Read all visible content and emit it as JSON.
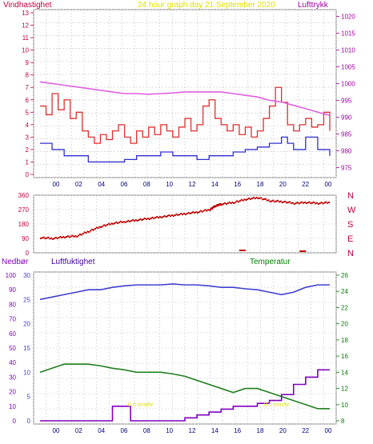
{
  "header": {
    "left_label": "Vindhastighet",
    "title": "24 hour graph day  21 September 2020",
    "right_label": "Lufttrykk"
  },
  "bottom_labels": {
    "left": "Nedbør",
    "mid": "Luftfuktighet",
    "right": "Temperatur"
  },
  "annotations": [
    "0.0 mm/hr",
    "0.0 mm/hr"
  ],
  "colors": {
    "wind": "#e03030",
    "gust_base": "#3030d0",
    "pressure": "#e060e0",
    "direction": "#c00000",
    "humidity": "#4040d0",
    "temperature": "#208020",
    "rain": "#8000c0",
    "left_axis": "#c00040",
    "right_axis_top": "#a000a0",
    "right_axis_bottom": "#008000",
    "title": "#e0e000"
  },
  "chart_data": [
    {
      "type": "line",
      "name": "wind-pressure",
      "x_ticks": [
        "00",
        "02",
        "04",
        "06",
        "08",
        "10",
        "12",
        "14",
        "16",
        "18",
        "20",
        "22",
        "00"
      ],
      "y_left_ticks": [
        "0",
        "1",
        "2",
        "3",
        "4",
        "5",
        "6",
        "7",
        "8",
        "9",
        "10",
        "11",
        "12",
        "13"
      ],
      "y_right_ticks": [
        "975",
        "980",
        "985",
        "990",
        "995",
        "1000",
        "1005",
        "1010",
        "1015",
        "1020"
      ],
      "ylim_left": [
        0,
        13
      ],
      "ylim_right": [
        972,
        1022
      ],
      "series": [
        {
          "key": "wind",
          "values": [
            [
              0,
              5.5
            ],
            [
              0.5,
              4.8
            ],
            [
              1,
              6.5
            ],
            [
              1.5,
              5.2
            ],
            [
              2,
              6
            ],
            [
              2.5,
              4.5
            ],
            [
              3,
              5
            ],
            [
              3.5,
              3.5
            ],
            [
              4,
              3
            ],
            [
              4.5,
              2.5
            ],
            [
              5,
              3.2
            ],
            [
              5.5,
              2.8
            ],
            [
              6,
              3.5
            ],
            [
              6.5,
              4
            ],
            [
              7,
              3
            ],
            [
              7.5,
              2.5
            ],
            [
              8,
              3.5
            ],
            [
              8.5,
              3
            ],
            [
              9,
              3.8
            ],
            [
              9.5,
              3.2
            ],
            [
              10,
              4
            ],
            [
              10.5,
              3.5
            ],
            [
              11,
              3
            ],
            [
              11.5,
              3.8
            ],
            [
              12,
              4.5
            ],
            [
              12.5,
              3.5
            ],
            [
              13,
              4
            ],
            [
              13.5,
              5.5
            ],
            [
              14,
              6
            ],
            [
              14.5,
              4.5
            ],
            [
              15,
              4
            ],
            [
              15.5,
              3.5
            ],
            [
              16,
              4
            ],
            [
              16.5,
              3.2
            ],
            [
              17,
              3.8
            ],
            [
              17.5,
              3
            ],
            [
              18,
              3.5
            ],
            [
              18.5,
              4.5
            ],
            [
              19,
              5.5
            ],
            [
              19.5,
              7
            ],
            [
              20,
              5.8
            ],
            [
              20.5,
              4
            ],
            [
              21,
              3.5
            ],
            [
              21.5,
              4
            ],
            [
              22,
              4.5
            ],
            [
              22.5,
              3.8
            ],
            [
              23,
              4
            ],
            [
              23.5,
              5
            ],
            [
              24,
              3.5
            ]
          ]
        },
        {
          "key": "gust_base",
          "values": [
            [
              0,
              2.5
            ],
            [
              1,
              2
            ],
            [
              2,
              1.5
            ],
            [
              3,
              1.5
            ],
            [
              4,
              1
            ],
            [
              5,
              1
            ],
            [
              6,
              1
            ],
            [
              7,
              1.2
            ],
            [
              8,
              1.5
            ],
            [
              9,
              1.5
            ],
            [
              10,
              1.8
            ],
            [
              11,
              1.5
            ],
            [
              12,
              1.5
            ],
            [
              13,
              1.2
            ],
            [
              14,
              1.5
            ],
            [
              15,
              1.5
            ],
            [
              16,
              1.8
            ],
            [
              17,
              2
            ],
            [
              18,
              2.2
            ],
            [
              19,
              2.5
            ],
            [
              20,
              3
            ],
            [
              20.5,
              2.5
            ],
            [
              21,
              2
            ],
            [
              22,
              3
            ],
            [
              23,
              2
            ],
            [
              24,
              1.5
            ]
          ]
        },
        {
          "key": "pressure",
          "axis": "right",
          "values": [
            [
              0,
              1000.5
            ],
            [
              1,
              1000
            ],
            [
              2,
              999.5
            ],
            [
              3,
              999
            ],
            [
              4,
              998.5
            ],
            [
              5,
              998
            ],
            [
              6,
              997.5
            ],
            [
              7,
              997
            ],
            [
              8,
              997
            ],
            [
              9,
              996.8
            ],
            [
              10,
              997
            ],
            [
              11,
              997.2
            ],
            [
              12,
              997.5
            ],
            [
              13,
              997.5
            ],
            [
              14,
              997.5
            ],
            [
              15,
              997.5
            ],
            [
              16,
              997
            ],
            [
              17,
              996.5
            ],
            [
              18,
              996
            ],
            [
              19,
              995
            ],
            [
              20,
              994.5
            ],
            [
              21,
              993.5
            ],
            [
              22,
              992.5
            ],
            [
              23,
              991.5
            ],
            [
              24,
              990.5
            ]
          ]
        }
      ]
    },
    {
      "type": "scatter",
      "name": "wind-direction",
      "y_left_ticks": [
        "0",
        "90",
        "180",
        "270",
        "360"
      ],
      "y_right_ticks": [
        "N",
        "E",
        "S",
        "W",
        "N"
      ],
      "ylim": [
        0,
        360
      ],
      "values": [
        [
          0,
          100
        ],
        [
          1,
          95
        ],
        [
          2,
          105
        ],
        [
          3,
          110
        ],
        [
          4,
          140
        ],
        [
          5,
          170
        ],
        [
          6,
          190
        ],
        [
          7,
          200
        ],
        [
          8,
          210
        ],
        [
          9,
          220
        ],
        [
          10,
          230
        ],
        [
          11,
          240
        ],
        [
          12,
          250
        ],
        [
          13,
          260
        ],
        [
          14,
          275
        ],
        [
          14.5,
          300
        ],
        [
          15,
          310
        ],
        [
          16,
          320
        ],
        [
          17,
          340
        ],
        [
          18,
          350
        ],
        [
          19,
          330
        ],
        [
          20,
          325
        ],
        [
          21,
          315
        ],
        [
          22,
          320
        ],
        [
          23,
          315
        ],
        [
          24,
          320
        ],
        [
          16.5,
          20
        ],
        [
          21.5,
          15
        ]
      ]
    },
    {
      "type": "line",
      "name": "rain-humidity-temperature",
      "x_ticks": [
        "00",
        "02",
        "04",
        "06",
        "08",
        "10",
        "12",
        "14",
        "16",
        "18",
        "20",
        "22",
        "00"
      ],
      "y_rain_ticks": [
        "0",
        "10",
        "20",
        "30",
        "40",
        "50",
        "60",
        "70",
        "80",
        "90",
        "100"
      ],
      "y_humidity_ticks": [
        "0",
        "5",
        "10",
        "15",
        "20",
        "25",
        "30"
      ],
      "y_temp_ticks": [
        "8",
        "10",
        "12",
        "14",
        "16",
        "18",
        "20",
        "22",
        "24",
        "26"
      ],
      "series": [
        {
          "key": "humidity",
          "axis": "humidity",
          "ylim": [
            0,
            30
          ],
          "values": [
            [
              0,
              25
            ],
            [
              1,
              25.5
            ],
            [
              2,
              26
            ],
            [
              3,
              26.5
            ],
            [
              4,
              27
            ],
            [
              5,
              27
            ],
            [
              6,
              27.5
            ],
            [
              7,
              27.8
            ],
            [
              8,
              28
            ],
            [
              9,
              28
            ],
            [
              10,
              28
            ],
            [
              11,
              28.2
            ],
            [
              12,
              28
            ],
            [
              13,
              28
            ],
            [
              14,
              27.8
            ],
            [
              15,
              27.5
            ],
            [
              16,
              27.5
            ],
            [
              17,
              27.2
            ],
            [
              18,
              27
            ],
            [
              19,
              26.5
            ],
            [
              20,
              26
            ],
            [
              21,
              26.5
            ],
            [
              22,
              27.5
            ],
            [
              23,
              28
            ],
            [
              24,
              28
            ]
          ]
        },
        {
          "key": "temperature",
          "axis": "temp",
          "ylim": [
            8,
            26
          ],
          "values": [
            [
              0,
              14
            ],
            [
              1,
              14.5
            ],
            [
              2,
              15
            ],
            [
              3,
              15
            ],
            [
              4,
              15
            ],
            [
              5,
              14.8
            ],
            [
              6,
              14.5
            ],
            [
              7,
              14.3
            ],
            [
              8,
              14
            ],
            [
              9,
              14
            ],
            [
              10,
              14
            ],
            [
              11,
              13.8
            ],
            [
              12,
              13.5
            ],
            [
              13,
              13
            ],
            [
              14,
              12.5
            ],
            [
              15,
              12
            ],
            [
              16,
              11.5
            ],
            [
              17,
              12
            ],
            [
              18,
              12
            ],
            [
              19,
              11.5
            ],
            [
              20,
              11
            ],
            [
              21,
              10.5
            ],
            [
              22,
              10
            ],
            [
              23,
              9.5
            ],
            [
              24,
              9.5
            ]
          ]
        },
        {
          "key": "rain",
          "axis": "rain",
          "ylim": [
            0,
            100
          ],
          "values": [
            [
              0,
              0
            ],
            [
              5,
              0
            ],
            [
              6,
              10
            ],
            [
              7,
              10
            ],
            [
              7.5,
              0
            ],
            [
              10,
              0
            ],
            [
              12,
              2
            ],
            [
              13,
              4
            ],
            [
              14,
              6
            ],
            [
              15,
              8
            ],
            [
              16,
              10
            ],
            [
              17,
              10
            ],
            [
              18,
              12
            ],
            [
              19,
              14
            ],
            [
              20,
              18
            ],
            [
              21,
              25
            ],
            [
              22,
              30
            ],
            [
              23,
              35
            ],
            [
              24,
              35
            ]
          ]
        }
      ]
    }
  ]
}
